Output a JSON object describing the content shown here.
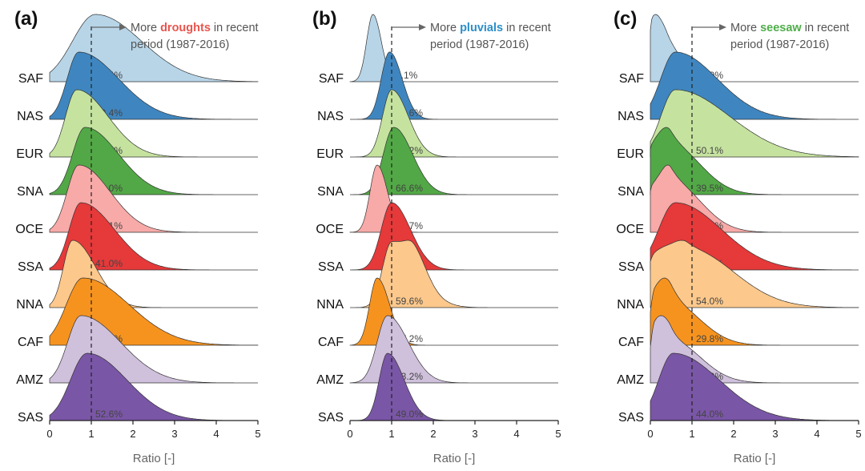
{
  "chart_data": [
    {
      "type": "area",
      "panel_label": "(a)",
      "annotation": {
        "prefix": "More ",
        "keyword": "droughts",
        "keyword_color": "#e8554e",
        "suffix": " in recent",
        "line2": "period (1987-2016)"
      },
      "xlabel": "Ratio [-]",
      "xlim": [
        0,
        5
      ],
      "x_ticks": [
        "0",
        "1",
        "2",
        "3",
        "4",
        "5"
      ],
      "reference_line_x": 1,
      "ridges": [
        {
          "region": "SAF",
          "percent": "66.4%",
          "color": "#b8d5e8",
          "peak_x": 1.1,
          "shape": [
            [
              1.1,
              0.55,
              1.1,
              1.0
            ]
          ]
        },
        {
          "region": "NAS",
          "percent": "58.4%",
          "color": "#3f86c0",
          "peak_x": 0.7,
          "shape": [
            [
              0.7,
              0.28,
              0.95,
              1.0
            ]
          ]
        },
        {
          "region": "EUR",
          "percent": "42.3%",
          "color": "#c5e39f",
          "peak_x": 0.65,
          "shape": [
            [
              0.65,
              0.27,
              0.75,
              1.0
            ]
          ]
        },
        {
          "region": "SNA",
          "percent": "49.0%",
          "color": "#52a846",
          "peak_x": 0.85,
          "shape": [
            [
              0.85,
              0.3,
              0.8,
              1.0
            ]
          ]
        },
        {
          "region": "OCE",
          "percent": "38.1%",
          "color": "#f7aaa8",
          "peak_x": 0.7,
          "shape": [
            [
              0.7,
              0.28,
              0.75,
              1.0
            ]
          ]
        },
        {
          "region": "SSA",
          "percent": "41.0%",
          "color": "#e5393a",
          "peak_x": 0.75,
          "shape": [
            [
              0.75,
              0.28,
              0.8,
              1.0
            ]
          ]
        },
        {
          "region": "NNA",
          "percent": "25.2%",
          "color": "#fcc88c",
          "peak_x": 0.55,
          "shape": [
            [
              0.55,
              0.22,
              0.55,
              1.0
            ]
          ]
        },
        {
          "region": "CAF",
          "percent": "58.6%",
          "color": "#f6931f",
          "peak_x": 0.8,
          "shape": [
            [
              0.8,
              0.4,
              1.1,
              0.95
            ]
          ]
        },
        {
          "region": "AMZ",
          "percent": "45.2%",
          "color": "#cfc0dc",
          "peak_x": 0.75,
          "shape": [
            [
              0.75,
              0.32,
              0.95,
              1.0
            ]
          ]
        },
        {
          "region": "SAS",
          "percent": "52.6%",
          "color": "#7a56a6",
          "peak_x": 0.9,
          "shape": [
            [
              0.9,
              0.4,
              0.95,
              1.0
            ]
          ]
        }
      ]
    },
    {
      "type": "area",
      "panel_label": "(b)",
      "annotation": {
        "prefix": "More ",
        "keyword": "pluvials",
        "keyword_color": "#2b8fc9",
        "suffix": " in recent",
        "line2": "period (1987-2016)"
      },
      "xlabel": "Ratio [-]",
      "xlim": [
        0,
        5
      ],
      "x_ticks": [
        "0",
        "1",
        "2",
        "3",
        "4",
        "5"
      ],
      "reference_line_x": 1,
      "ridges": [
        {
          "region": "SAF",
          "percent": "4.1%",
          "color": "#b8d5e8",
          "peak_x": 0.55,
          "shape": [
            [
              0.55,
              0.15,
              0.2,
              1.0
            ]
          ]
        },
        {
          "region": "NAS",
          "percent": "52.6%",
          "color": "#3f86c0",
          "peak_x": 0.95,
          "shape": [
            [
              0.95,
              0.2,
              0.3,
              1.0
            ]
          ]
        },
        {
          "region": "EUR",
          "percent": "62.2%",
          "color": "#c5e39f",
          "peak_x": 1.0,
          "shape": [
            [
              1.0,
              0.22,
              0.4,
              1.0
            ]
          ]
        },
        {
          "region": "SNA",
          "percent": "66.6%",
          "color": "#52a846",
          "peak_x": 1.05,
          "shape": [
            [
              1.05,
              0.25,
              0.45,
              1.0
            ]
          ]
        },
        {
          "region": "OCE",
          "percent": "16.7%",
          "color": "#f7aaa8",
          "peak_x": 0.65,
          "shape": [
            [
              0.65,
              0.17,
              0.25,
              1.0
            ]
          ]
        },
        {
          "region": "SSA",
          "percent": "61.1%",
          "color": "#e5393a",
          "peak_x": 1.0,
          "shape": [
            [
              1.0,
              0.25,
              0.45,
              1.0
            ]
          ]
        },
        {
          "region": "NNA",
          "percent": "59.6%",
          "color": "#fcc88c",
          "peak_x": 1.0,
          "shape": [
            [
              1.0,
              0.22,
              0.6,
              1.0
            ],
            [
              1.55,
              0.2,
              0.3,
              0.3
            ]
          ]
        },
        {
          "region": "CAF",
          "percent": "17.2%",
          "color": "#f6931f",
          "peak_x": 0.65,
          "shape": [
            [
              0.65,
              0.18,
              0.3,
              1.0
            ]
          ]
        },
        {
          "region": "AMZ",
          "percent": "43.2%",
          "color": "#cfc0dc",
          "peak_x": 0.9,
          "shape": [
            [
              0.9,
              0.25,
              0.5,
              1.0
            ]
          ]
        },
        {
          "region": "SAS",
          "percent": "49.0%",
          "color": "#7a56a6",
          "peak_x": 0.9,
          "shape": [
            [
              0.9,
              0.2,
              0.4,
              1.0
            ]
          ]
        }
      ]
    },
    {
      "type": "area",
      "panel_label": "(c)",
      "annotation": {
        "prefix": "More ",
        "keyword": "seesaw",
        "keyword_color": "#4fae4a",
        "suffix": " in recent",
        "line2": "period (1987-2016)"
      },
      "xlabel": "Ratio [-]",
      "xlim": [
        0,
        5
      ],
      "x_ticks": [
        "0",
        "1",
        "2",
        "3",
        "4",
        "5"
      ],
      "reference_line_x": 1,
      "ridges": [
        {
          "region": "SAF",
          "percent": "15.9%",
          "color": "#b8d5e8",
          "peak_x": 0.05,
          "shape": [
            [
              0.05,
              0.08,
              0.2,
              1.0
            ],
            [
              0.4,
              0.2,
              0.35,
              0.65
            ]
          ]
        },
        {
          "region": "NAS",
          "percent": "51.8%",
          "color": "#3f86c0",
          "peak_x": 0.6,
          "shape": [
            [
              0.6,
              0.35,
              1.0,
              1.0
            ]
          ]
        },
        {
          "region": "EUR",
          "percent": "50.1%",
          "color": "#c5e39f",
          "peak_x": 0.6,
          "shape": [
            [
              0.6,
              0.35,
              1.3,
              1.0
            ]
          ]
        },
        {
          "region": "SNA",
          "percent": "39.5%",
          "color": "#52a846",
          "peak_x": 0.5,
          "shape": [
            [
              0.05,
              0.12,
              0.3,
              0.85
            ],
            [
              0.5,
              0.25,
              0.7,
              1.0
            ]
          ]
        },
        {
          "region": "OCE",
          "percent": "32.5%",
          "color": "#f7aaa8",
          "peak_x": 0.5,
          "shape": [
            [
              0.05,
              0.1,
              0.3,
              0.82
            ],
            [
              0.5,
              0.22,
              0.7,
              1.0
            ]
          ]
        },
        {
          "region": "SSA",
          "percent": "47.3%",
          "color": "#e5393a",
          "peak_x": 0.6,
          "shape": [
            [
              0.6,
              0.4,
              1.1,
              1.0
            ]
          ]
        },
        {
          "region": "NNA",
          "percent": "54.0%",
          "color": "#fcc88c",
          "peak_x": 0.9,
          "shape": [
            [
              0.1,
              0.2,
              0.4,
              0.8
            ],
            [
              0.9,
              0.4,
              1.1,
              1.0
            ]
          ]
        },
        {
          "region": "CAF",
          "percent": "29.8%",
          "color": "#f6931f",
          "peak_x": 0.1,
          "shape": [
            [
              0.1,
              0.1,
              0.3,
              1.0
            ],
            [
              0.5,
              0.25,
              0.7,
              0.92
            ]
          ]
        },
        {
          "region": "AMZ",
          "percent": "33.3%",
          "color": "#cfc0dc",
          "peak_x": 0.1,
          "shape": [
            [
              0.1,
              0.1,
              0.25,
              1.0
            ],
            [
              0.5,
              0.25,
              0.7,
              0.85
            ]
          ]
        },
        {
          "region": "SAS",
          "percent": "44.0%",
          "color": "#7a56a6",
          "peak_x": 0.55,
          "shape": [
            [
              0.55,
              0.35,
              1.1,
              1.0
            ]
          ]
        }
      ]
    }
  ]
}
